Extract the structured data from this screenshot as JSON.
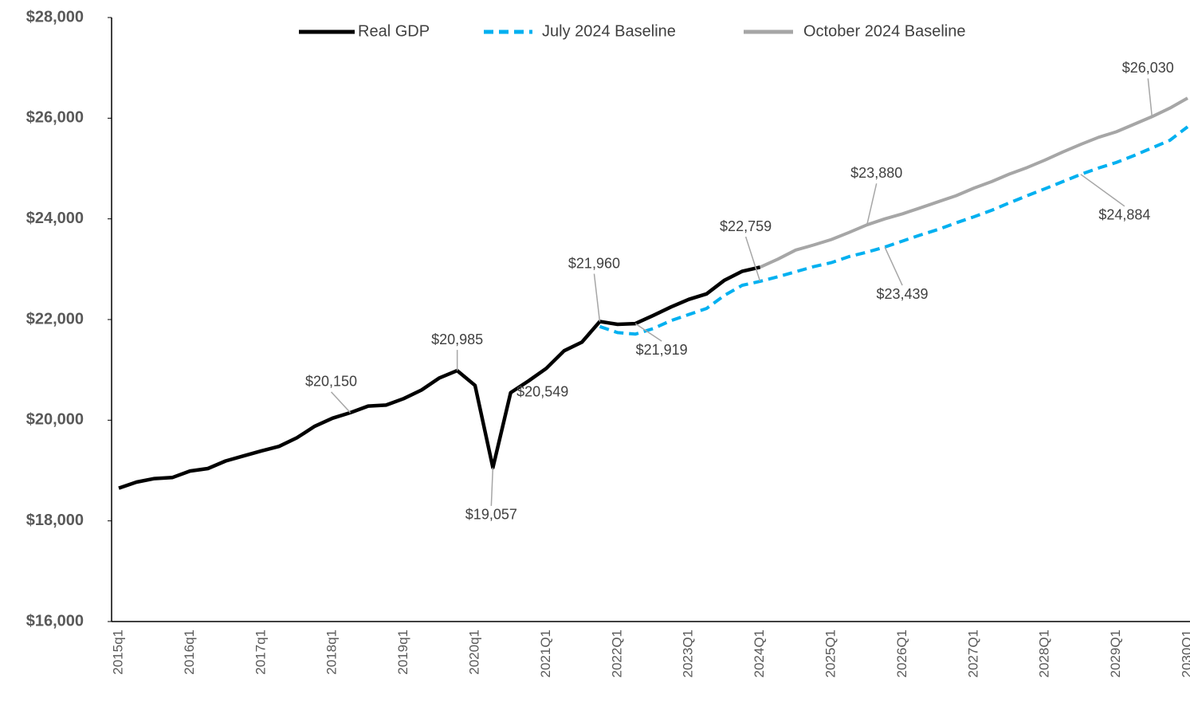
{
  "chart_data": {
    "type": "line",
    "categories": [
      "2015q1",
      null,
      null,
      null,
      "2016q1",
      null,
      null,
      null,
      "2017q1",
      null,
      null,
      null,
      "2018q1",
      null,
      null,
      null,
      "2019q1",
      null,
      null,
      null,
      "2020q1",
      null,
      null,
      null,
      "2021Q1",
      null,
      null,
      null,
      "2022Q1",
      null,
      null,
      null,
      "2023Q1",
      null,
      null,
      null,
      "2024Q1",
      null,
      null,
      null,
      "2025Q1",
      null,
      null,
      null,
      "2026Q1",
      null,
      null,
      null,
      "2027Q1",
      null,
      null,
      null,
      "2028Q1",
      null,
      null,
      null,
      "2029Q1",
      null,
      null,
      null,
      "2030Q1"
    ],
    "series": [
      {
        "name": "Real GDP",
        "color": "#000000",
        "values": [
          18650,
          18770,
          18840,
          18860,
          18990,
          19040,
          19190,
          19290,
          19390,
          19480,
          19650,
          19880,
          20040,
          20150,
          20280,
          20300,
          20430,
          20600,
          20840,
          20985,
          20690,
          19057,
          20549,
          20780,
          21030,
          21380,
          21550,
          21960,
          21905,
          21919,
          22080,
          22250,
          22400,
          22510,
          22780,
          22960,
          23040,
          null,
          null,
          null,
          null,
          null,
          null,
          null,
          null,
          null,
          null,
          null,
          null,
          null,
          null,
          null,
          null,
          null,
          null,
          null,
          null,
          null,
          null,
          null,
          null
        ],
        "value_labels": [
          null,
          null,
          null,
          null,
          null,
          null,
          null,
          null,
          null,
          null,
          null,
          null,
          null,
          "$20,150",
          null,
          null,
          null,
          null,
          null,
          "$20,985",
          null,
          "$19,057",
          "$20,549",
          null,
          null,
          null,
          null,
          "$21,960",
          null,
          "$21,919",
          null,
          null,
          null,
          null,
          null,
          null,
          null,
          null,
          null,
          null,
          null,
          null,
          null,
          null,
          null,
          null,
          null,
          null,
          null,
          null,
          null,
          null,
          null,
          null,
          null,
          null,
          null,
          null,
          null,
          null,
          null
        ]
      },
      {
        "name": "July 2024 Baseline",
        "color": "#00B0F0",
        "dashed": true,
        "values": [
          null,
          null,
          null,
          null,
          null,
          null,
          null,
          null,
          null,
          null,
          null,
          null,
          null,
          null,
          null,
          null,
          null,
          null,
          null,
          null,
          null,
          null,
          null,
          null,
          null,
          null,
          null,
          21860,
          21740,
          21710,
          21820,
          21980,
          22100,
          22220,
          22480,
          22680,
          22759,
          22850,
          22950,
          23050,
          23130,
          23250,
          23340,
          23439,
          23560,
          23680,
          23790,
          23920,
          24040,
          24170,
          24320,
          24460,
          24600,
          24740,
          24884,
          25010,
          25120,
          25260,
          25410,
          25560,
          25830
        ],
        "value_labels": [
          null,
          null,
          null,
          null,
          null,
          null,
          null,
          null,
          null,
          null,
          null,
          null,
          null,
          null,
          null,
          null,
          null,
          null,
          null,
          null,
          null,
          null,
          null,
          null,
          null,
          null,
          null,
          null,
          null,
          null,
          null,
          null,
          null,
          null,
          null,
          null,
          "$22,759",
          null,
          null,
          null,
          null,
          null,
          null,
          "$23,439",
          null,
          null,
          null,
          null,
          null,
          null,
          null,
          null,
          null,
          null,
          "$24,884",
          null,
          null,
          null,
          null,
          null,
          null
        ]
      },
      {
        "name": "October 2024 Baseline",
        "color": "#A6A6A6",
        "values": [
          null,
          null,
          null,
          null,
          null,
          null,
          null,
          null,
          null,
          null,
          null,
          null,
          null,
          null,
          null,
          null,
          null,
          null,
          null,
          null,
          null,
          null,
          null,
          null,
          null,
          null,
          null,
          null,
          null,
          null,
          null,
          null,
          null,
          null,
          null,
          null,
          23040,
          23200,
          23380,
          23480,
          23590,
          23730,
          23880,
          24000,
          24100,
          24220,
          24340,
          24460,
          24610,
          24740,
          24890,
          25020,
          25170,
          25330,
          25480,
          25620,
          25730,
          25880,
          26030,
          26200,
          26400
        ],
        "value_labels": [
          null,
          null,
          null,
          null,
          null,
          null,
          null,
          null,
          null,
          null,
          null,
          null,
          null,
          null,
          null,
          null,
          null,
          null,
          null,
          null,
          null,
          null,
          null,
          null,
          null,
          null,
          null,
          null,
          null,
          null,
          null,
          null,
          null,
          null,
          null,
          null,
          null,
          null,
          null,
          null,
          null,
          null,
          "$23,880",
          null,
          null,
          null,
          null,
          null,
          null,
          null,
          null,
          null,
          null,
          null,
          null,
          null,
          null,
          null,
          "$26,030",
          null,
          null
        ]
      }
    ],
    "ylim": [
      16000,
      28000
    ],
    "yticks": [
      {
        "value": 16000,
        "label": "$16,000"
      },
      {
        "value": 18000,
        "label": "$18,000"
      },
      {
        "value": 20000,
        "label": "$20,000"
      },
      {
        "value": 22000,
        "label": "$22,000"
      },
      {
        "value": 24000,
        "label": "$24,000"
      },
      {
        "value": 26000,
        "label": "$26,000"
      },
      {
        "value": 28000,
        "label": "$28,000"
      }
    ],
    "grid": false,
    "legend": "top"
  }
}
